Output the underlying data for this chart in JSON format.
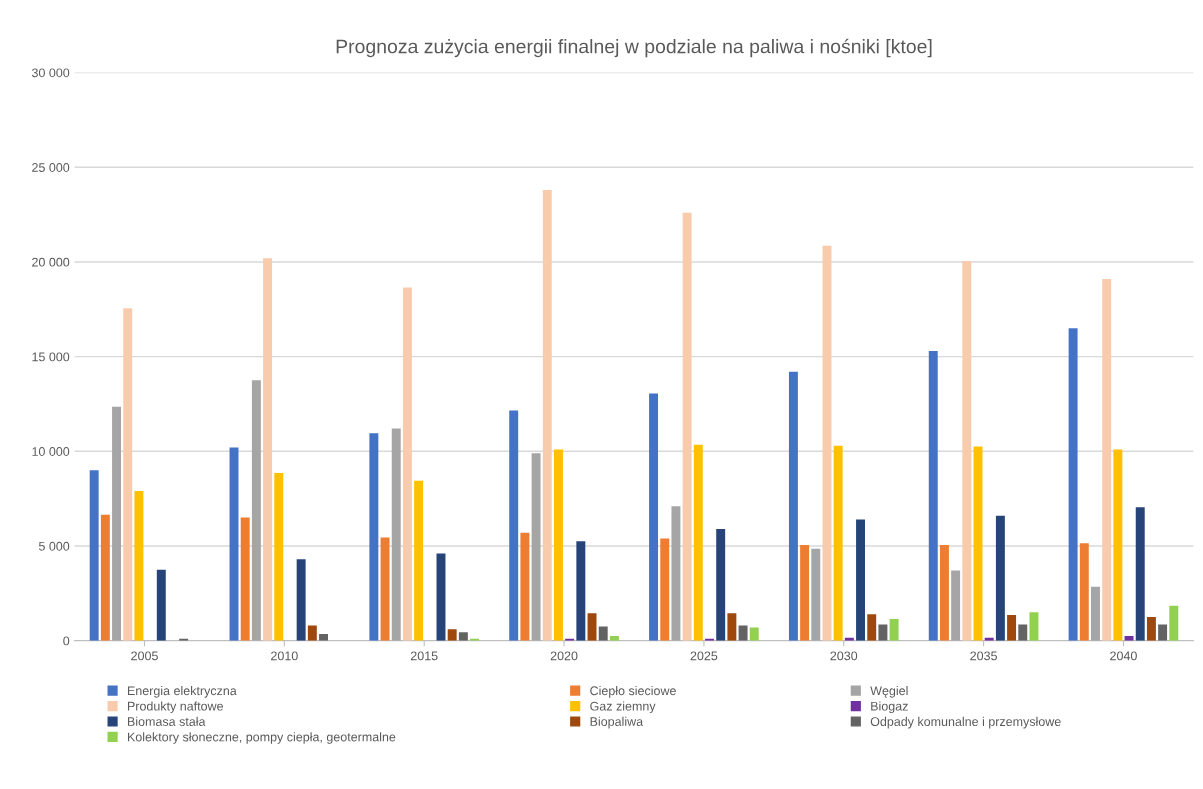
{
  "chart_data": {
    "type": "bar",
    "title": "Prognoza zużycia energii finalnej w podziale na paliwa i nośniki [ktoe]",
    "categories": [
      "2005",
      "2010",
      "2015",
      "2020",
      "2025",
      "2030",
      "2035",
      "2040"
    ],
    "series": [
      {
        "name": "Energia elektryczna",
        "color": "#4472c4",
        "values": [
          9000,
          10200,
          10950,
          12150,
          13050,
          14200,
          15300,
          16500
        ]
      },
      {
        "name": "Ciepło sieciowe",
        "color": "#ed7d31",
        "values": [
          6650,
          6500,
          5450,
          5700,
          5400,
          5050,
          5050,
          5150
        ]
      },
      {
        "name": "Węgiel",
        "color": "#a5a5a5",
        "values": [
          12350,
          13750,
          11200,
          9900,
          7100,
          4850,
          3700,
          2850
        ]
      },
      {
        "name": "Produkty naftowe",
        "color": "#f8cbad",
        "values": [
          17550,
          20200,
          18650,
          23800,
          22600,
          20850,
          20050,
          19100
        ]
      },
      {
        "name": "Gaz ziemny",
        "color": "#ffc000",
        "values": [
          7900,
          8850,
          8450,
          10100,
          10350,
          10300,
          10250,
          10100
        ]
      },
      {
        "name": "Biogaz",
        "color": "#7030a0",
        "values": [
          0,
          0,
          0,
          100,
          100,
          150,
          150,
          250
        ]
      },
      {
        "name": "Biomasa stała",
        "color": "#264478",
        "values": [
          3750,
          4300,
          4600,
          5250,
          5900,
          6400,
          6600,
          7050
        ]
      },
      {
        "name": "Biopaliwa",
        "color": "#9e480e",
        "values": [
          0,
          800,
          600,
          1450,
          1450,
          1400,
          1350,
          1250
        ]
      },
      {
        "name": "Odpady komunalne i przemysłowe",
        "color": "#636363",
        "values": [
          100,
          350,
          450,
          750,
          800,
          850,
          850,
          850
        ]
      },
      {
        "name": "Kolektory słoneczne, pompy ciepła, geotermalne",
        "color": "#92d050",
        "values": [
          0,
          0,
          100,
          250,
          700,
          1150,
          1500,
          1850
        ]
      }
    ],
    "ylim": [
      0,
      30000
    ],
    "yticks": [
      0,
      {
        "value": 5000,
        "label": "5 000"
      },
      {
        "value": 10000,
        "label": "10 000"
      },
      {
        "value": 15000,
        "label": "15 000"
      },
      {
        "value": 20000,
        "label": "20 000"
      },
      {
        "value": 25000,
        "label": "25 000"
      },
      {
        "value": 30000,
        "label": "30 000"
      }
    ],
    "grid": "y",
    "legend": "bottom"
  }
}
